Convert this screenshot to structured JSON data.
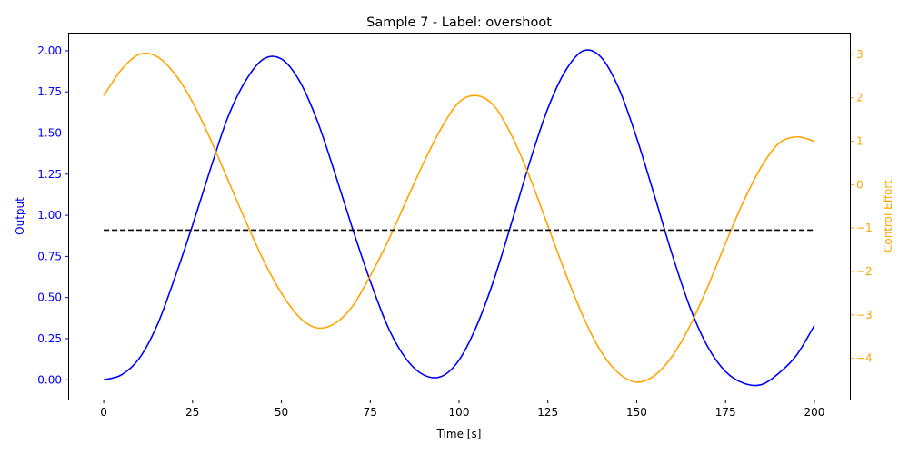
{
  "chart_data": {
    "type": "line",
    "title": "Sample 7 - Label: overshoot",
    "xlabel": "Time [s]",
    "ylabel": "Output",
    "ylabel_right": "Control Effort",
    "xlim": [
      -10,
      210
    ],
    "ylim": [
      -0.12,
      2.11
    ],
    "ylim_right": [
      -4.95,
      3.5
    ],
    "x_ticks": [
      0,
      25,
      50,
      75,
      100,
      125,
      150,
      175,
      200
    ],
    "x_tick_labels": [
      "0",
      "25",
      "50",
      "75",
      "100",
      "125",
      "150",
      "175",
      "200"
    ],
    "y_ticks": [
      0,
      0.25,
      0.5,
      0.75,
      1.0,
      1.25,
      1.5,
      1.75,
      2.0
    ],
    "y_tick_labels": [
      "0.00",
      "0.25",
      "0.50",
      "0.75",
      "1.00",
      "1.25",
      "1.50",
      "1.75",
      "2.00"
    ],
    "y_ticks_right": [
      -4,
      -3,
      -2,
      -1,
      0,
      1,
      2,
      3
    ],
    "y_tick_labels_right": [
      "−4",
      "−3",
      "−2",
      "−1",
      "0",
      "1",
      "2",
      "3"
    ],
    "grid": false,
    "legend": "none",
    "colors": {
      "output": "#0000ff",
      "control": "#ffa500",
      "setpoint": "#000000",
      "axis": "#000000"
    },
    "series": [
      {
        "axis": "left",
        "x": [
          0,
          5,
          10,
          15,
          20,
          25,
          30,
          35,
          40,
          45,
          50,
          55,
          60,
          65,
          70,
          75,
          80,
          85,
          90,
          95,
          100,
          105,
          110,
          115,
          120,
          125,
          130,
          135,
          140,
          145,
          150,
          155,
          160,
          165,
          170,
          175,
          180,
          185,
          190,
          195,
          200
        ],
        "values": [
          0.0,
          0.03,
          0.13,
          0.33,
          0.62,
          0.94,
          1.28,
          1.6,
          1.82,
          1.95,
          1.95,
          1.82,
          1.58,
          1.26,
          0.92,
          0.6,
          0.32,
          0.13,
          0.03,
          0.02,
          0.12,
          0.33,
          0.62,
          0.97,
          1.33,
          1.65,
          1.88,
          2.0,
          1.96,
          1.77,
          1.47,
          1.12,
          0.76,
          0.44,
          0.2,
          0.05,
          -0.02,
          -0.03,
          0.04,
          0.15,
          0.33
        ]
      },
      {
        "axis": "right",
        "x": [
          0,
          5,
          10,
          15,
          20,
          25,
          30,
          35,
          40,
          45,
          50,
          55,
          60,
          65,
          70,
          75,
          80,
          85,
          90,
          95,
          100,
          105,
          110,
          115,
          120,
          125,
          130,
          135,
          140,
          145,
          150,
          155,
          160,
          165,
          170,
          175,
          180,
          185,
          190,
          195,
          200
        ],
        "values": [
          2.05,
          2.65,
          3.0,
          2.95,
          2.55,
          1.9,
          1.05,
          0.1,
          -0.85,
          -1.75,
          -2.5,
          -3.05,
          -3.3,
          -3.2,
          -2.8,
          -2.1,
          -1.3,
          -0.4,
          0.5,
          1.3,
          1.9,
          2.05,
          1.8,
          1.1,
          0.15,
          -0.95,
          -2.05,
          -3.05,
          -3.85,
          -4.35,
          -4.55,
          -4.4,
          -3.95,
          -3.25,
          -2.35,
          -1.35,
          -0.4,
          0.4,
          0.95,
          1.1,
          1.0
        ]
      },
      {
        "axis": "left",
        "style": "dashed",
        "x": [
          0,
          200
        ],
        "values": [
          0.91,
          0.91
        ]
      }
    ]
  }
}
